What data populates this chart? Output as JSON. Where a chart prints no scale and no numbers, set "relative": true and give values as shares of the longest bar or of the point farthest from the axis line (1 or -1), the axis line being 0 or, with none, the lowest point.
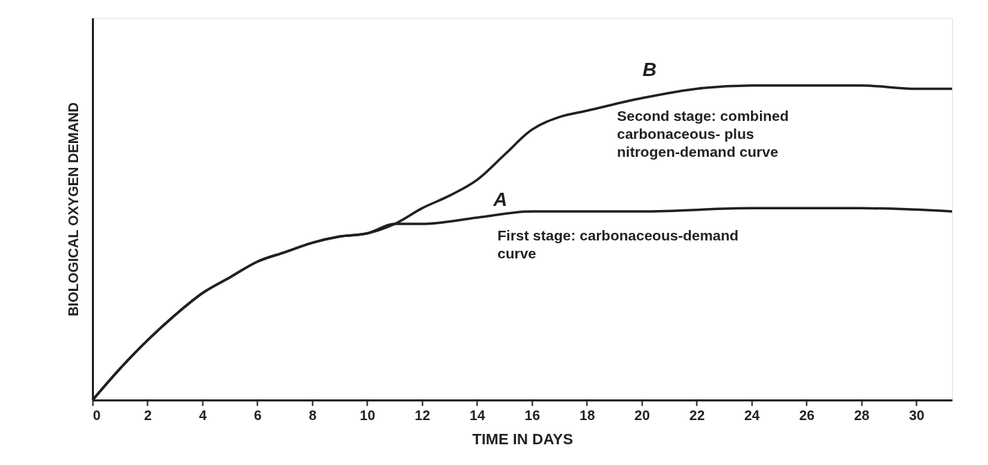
{
  "chart_data": {
    "type": "line",
    "relative": true,
    "xlabel": "TIME IN DAYS",
    "ylabel": "BIOLOGICAL OXYGEN DEMAND",
    "xlim": [
      0,
      31.3
    ],
    "xticks": [
      0,
      2,
      4,
      6,
      8,
      10,
      12,
      14,
      16,
      18,
      20,
      22,
      24,
      26,
      28,
      30
    ],
    "grid": false,
    "marker": "none",
    "line_style": "solid",
    "series": [
      {
        "name": "A",
        "color": "#231f20",
        "x": [
          0,
          1,
          2,
          3,
          4,
          5,
          6,
          7,
          8,
          9,
          10,
          11,
          12,
          14,
          16,
          20,
          24,
          28,
          31.3
        ],
        "values": [
          0,
          0.1,
          0.19,
          0.27,
          0.34,
          0.39,
          0.44,
          0.47,
          0.5,
          0.52,
          0.53,
          0.56,
          0.56,
          0.58,
          0.6,
          0.6,
          0.61,
          0.61,
          0.6
        ]
      },
      {
        "name": "B",
        "color": "#231f20",
        "x": [
          0,
          1,
          2,
          3,
          4,
          5,
          6,
          7,
          8,
          9,
          10,
          11,
          12,
          13,
          14,
          15,
          16,
          17,
          18,
          20,
          22,
          24,
          26,
          28,
          30,
          31.3
        ],
        "values": [
          0,
          0.1,
          0.19,
          0.27,
          0.34,
          0.39,
          0.44,
          0.47,
          0.5,
          0.52,
          0.53,
          0.56,
          0.61,
          0.65,
          0.7,
          0.78,
          0.86,
          0.9,
          0.92,
          0.96,
          0.99,
          1,
          1,
          1,
          0.99,
          0.99
        ]
      }
    ],
    "annotations": [
      "First stage: carbonaceous-demand\ncurve",
      "Second stage: combined\ncarbonaceous- plus\nnitrogen-demand curve"
    ]
  }
}
